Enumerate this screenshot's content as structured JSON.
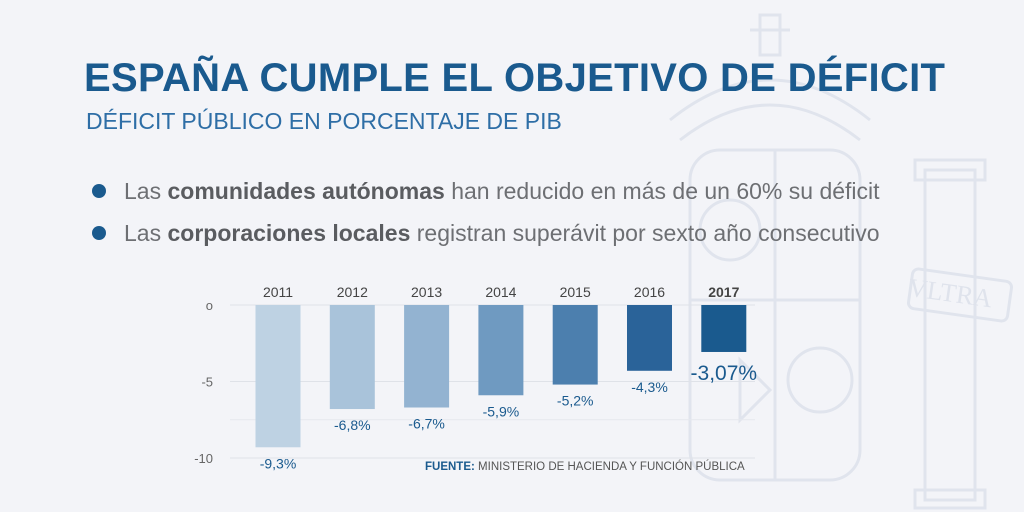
{
  "header": {
    "title": "ESPAÑA CUMPLE EL OBJETIVO DE DÉFICIT",
    "subtitle": "DÉFICIT PÚBLICO EN PORCENTAJE DE PIB"
  },
  "bullets": [
    {
      "pre": "Las ",
      "bold": "comunidades autónomas",
      "post": " han reducido en más de un 60% su déficit"
    },
    {
      "pre": "Las ",
      "bold": "corporaciones locales",
      "post": " registran superávit por sexto año consecutivo"
    }
  ],
  "source": {
    "label": "FUENTE:",
    "text": " MINISTERIO DE HACIENDA Y FUNCIÓN PÚBLICA"
  },
  "watermark": {
    "motto": "VLTRA"
  },
  "chart_data": {
    "type": "bar",
    "categories": [
      "2011",
      "2012",
      "2013",
      "2014",
      "2015",
      "2016",
      "2017"
    ],
    "values": [
      -9.3,
      -6.8,
      -6.7,
      -5.9,
      -5.2,
      -4.3,
      -3.07
    ],
    "data_labels": [
      "-9,3%",
      "-6,8%",
      "-6,7%",
      "-5,9%",
      "-5,2%",
      "-4,3%",
      "-3,07%"
    ],
    "highlight": "2017",
    "bar_colors": [
      "#bed2e3",
      "#a9c3da",
      "#93b3d1",
      "#6f9ac1",
      "#4c7fae",
      "#2a6399",
      "#1a5a8e"
    ],
    "yticks": [
      "o",
      "-5",
      "-10"
    ],
    "ytick_values": [
      0,
      -5,
      -10
    ],
    "ylim": [
      -10,
      0
    ],
    "title": "",
    "xlabel": "",
    "ylabel": ""
  }
}
